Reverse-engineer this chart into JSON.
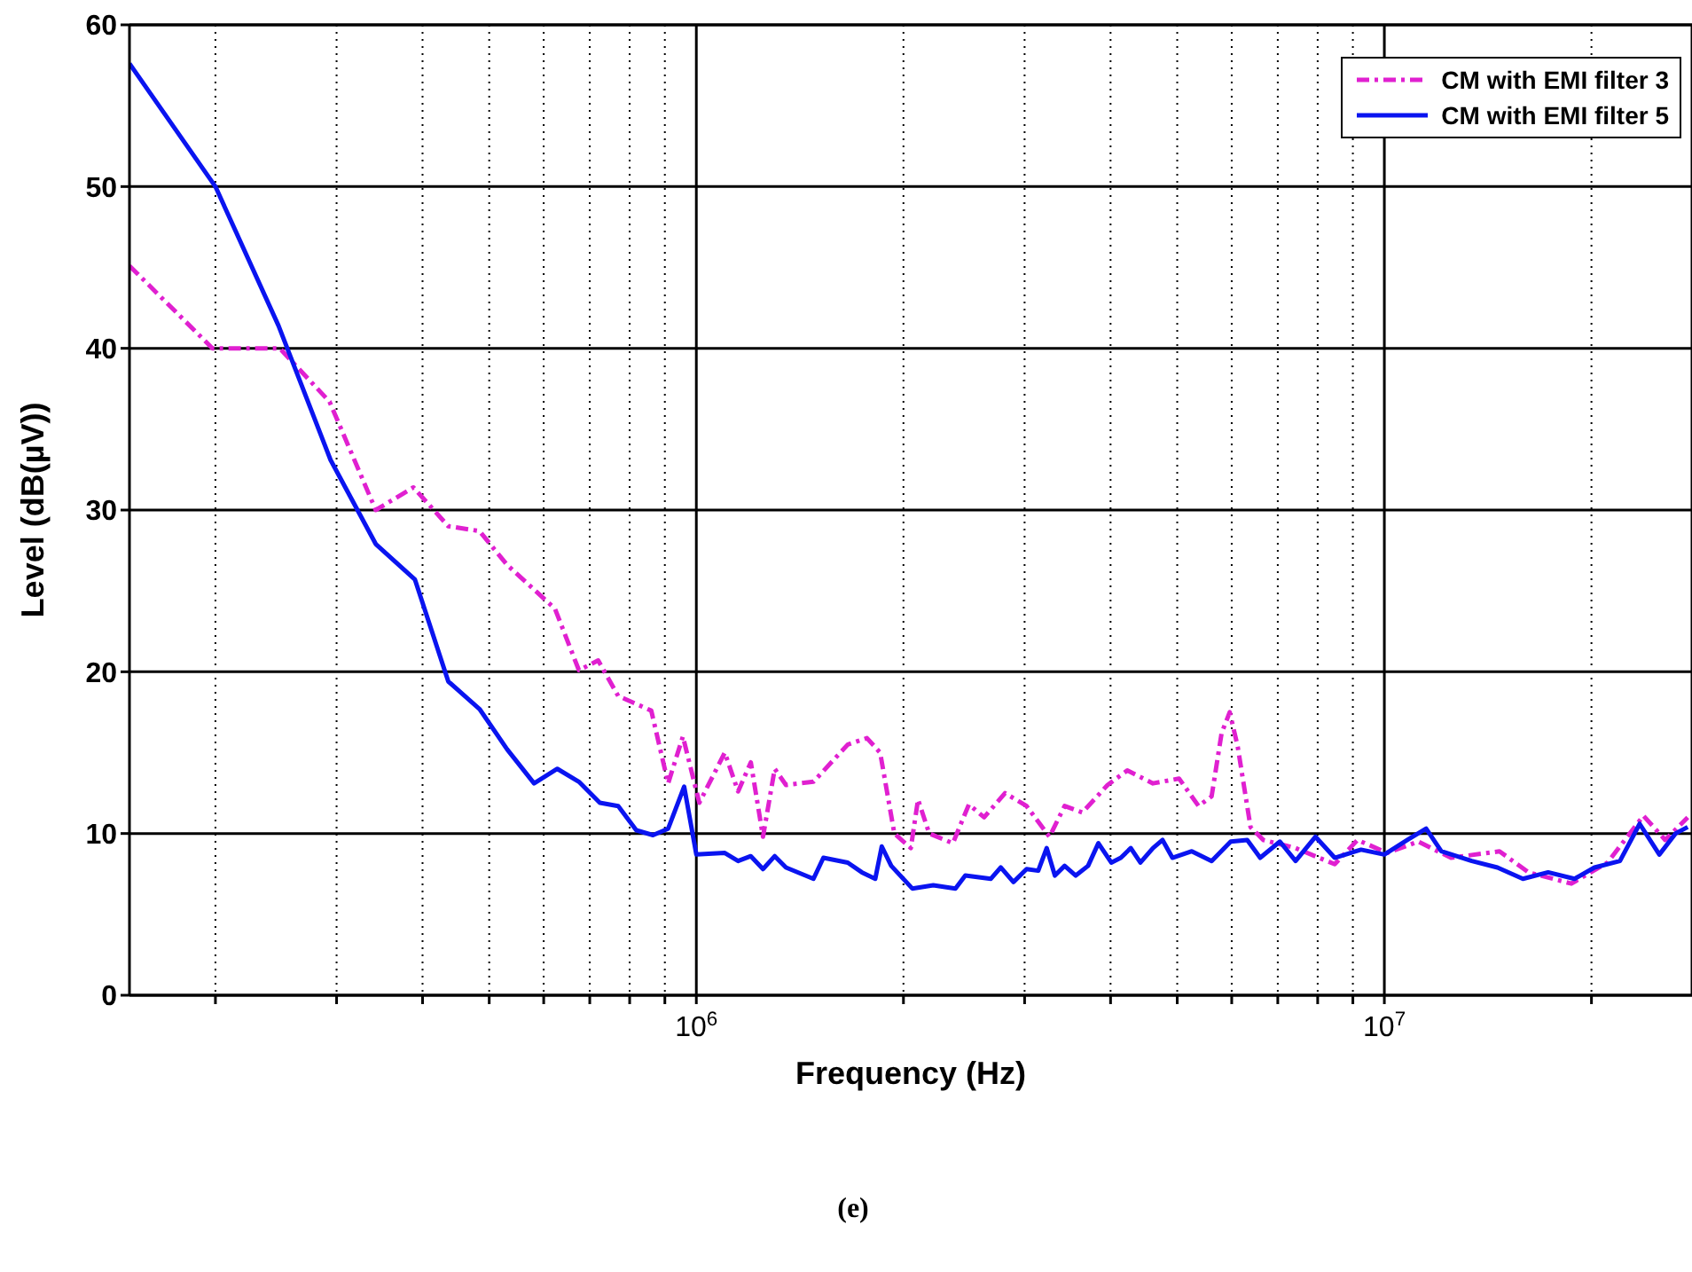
{
  "chart_data": {
    "type": "line",
    "xlabel": "Frequency (Hz)",
    "ylabel": "Level (dB(µV))",
    "log": "x",
    "xlim": [
      150000,
      28000000
    ],
    "xticks": [
      {
        "value": 200000,
        "label": null
      },
      {
        "value": 300000,
        "label": null
      },
      {
        "value": 400000,
        "label": null
      },
      {
        "value": 500000,
        "label": null
      },
      {
        "value": 600000,
        "label": null
      },
      {
        "value": 700000,
        "label": null
      },
      {
        "value": 800000,
        "label": null
      },
      {
        "value": 900000,
        "label": null
      },
      {
        "value": 1000000,
        "label": "10$^{6}$"
      },
      {
        "value": 2000000,
        "label": null
      },
      {
        "value": 3000000,
        "label": null
      },
      {
        "value": 4000000,
        "label": null
      },
      {
        "value": 5000000,
        "label": null
      },
      {
        "value": 6000000,
        "label": null
      },
      {
        "value": 7000000,
        "label": null
      },
      {
        "value": 8000000,
        "label": null
      },
      {
        "value": 9000000,
        "label": null
      },
      {
        "value": 10000000,
        "label": "10$^{7}$"
      },
      {
        "value": 20000000,
        "label": null
      }
    ],
    "ylim": [
      0,
      60
    ],
    "yticks": [
      0,
      10,
      20,
      30,
      40,
      50,
      60
    ],
    "grid": true,
    "legend": "top right",
    "marker": "none",
    "annotations": [
      "(e)"
    ],
    "series": [
      {
        "name": "CM with EMI filter 3",
        "color": "#e020d0",
        "line_style": "dashed",
        "x": [
          150000,
          198000,
          248000,
          293000,
          342000,
          388000,
          436000,
          484000,
          531000,
          623000,
          675000,
          720000,
          770000,
          860000,
          910000,
          956000,
          1010000,
          1100000,
          1150000,
          1200000,
          1250000,
          1300000,
          1350000,
          1480000,
          1660000,
          1770000,
          1850000,
          1940000,
          2050000,
          2100000,
          2180000,
          2360000,
          2490000,
          2620000,
          2810000,
          3020000,
          3260000,
          3430000,
          3640000,
          3960000,
          4230000,
          4610000,
          5030000,
          5370000,
          5610000,
          5800000,
          5960000,
          6120000,
          6390000,
          6670000,
          7430000,
          8470000,
          9140000,
          10100000,
          11200000,
          12500000,
          14700000,
          16200000,
          18700000,
          21100000,
          23800000,
          25600000,
          27600000
        ],
        "values": [
          45.1,
          40.0,
          40.0,
          36.7,
          30.0,
          31.4,
          29.0,
          28.7,
          26.6,
          23.9,
          20.1,
          20.7,
          18.5,
          17.6,
          13.1,
          16.0,
          11.9,
          15.0,
          12.6,
          14.4,
          9.8,
          14.0,
          13.0,
          13.2,
          15.5,
          15.9,
          15.0,
          10.0,
          9.1,
          12.1,
          10.0,
          9.4,
          11.8,
          11.0,
          12.5,
          11.7,
          9.8,
          11.7,
          11.3,
          13.0,
          13.9,
          13.1,
          13.4,
          11.7,
          12.3,
          16.2,
          17.5,
          15.4,
          10.4,
          9.6,
          9.1,
          8.1,
          9.6,
          8.8,
          9.5,
          8.5,
          8.9,
          7.6,
          6.9,
          8.2,
          11.1,
          9.6,
          11.0
        ]
      },
      {
        "name": "CM with EMI filter 5",
        "color": "#0a14f0",
        "line_style": "solid",
        "x": [
          150000,
          200000,
          247000,
          294000,
          342000,
          390000,
          436000,
          484000,
          531000,
          581000,
          628000,
          675000,
          724000,
          770000,
          818000,
          865000,
          910000,
          960000,
          1000000,
          1100000,
          1150000,
          1200000,
          1250000,
          1300000,
          1350000,
          1480000,
          1530000,
          1660000,
          1740000,
          1820000,
          1860000,
          1920000,
          2060000,
          2210000,
          2380000,
          2460000,
          2680000,
          2770000,
          2890000,
          3020000,
          3140000,
          3230000,
          3320000,
          3430000,
          3560000,
          3710000,
          3840000,
          4010000,
          4140000,
          4280000,
          4420000,
          4610000,
          4760000,
          4920000,
          5250000,
          5610000,
          5980000,
          6320000,
          6600000,
          7050000,
          7430000,
          7940000,
          8470000,
          9250000,
          10000000,
          10800000,
          11500000,
          12100000,
          13400000,
          14600000,
          15900000,
          17300000,
          18900000,
          20200000,
          22000000,
          23500000,
          25100000,
          26500000,
          27600000
        ],
        "values": [
          57.6,
          50.0,
          41.4,
          33.1,
          27.9,
          25.7,
          19.4,
          17.7,
          15.2,
          13.1,
          14.0,
          13.2,
          11.9,
          11.7,
          10.2,
          9.9,
          10.3,
          12.9,
          8.7,
          8.8,
          8.3,
          8.6,
          7.8,
          8.6,
          7.9,
          7.2,
          8.5,
          8.2,
          7.6,
          7.2,
          9.2,
          8.0,
          6.6,
          6.8,
          6.6,
          7.4,
          7.2,
          7.9,
          7.0,
          7.8,
          7.7,
          9.1,
          7.4,
          8.0,
          7.4,
          8.0,
          9.4,
          8.2,
          8.5,
          9.1,
          8.2,
          9.1,
          9.6,
          8.5,
          8.9,
          8.3,
          9.5,
          9.6,
          8.5,
          9.5,
          8.3,
          9.8,
          8.5,
          9.0,
          8.7,
          9.6,
          10.3,
          8.9,
          8.3,
          7.9,
          7.2,
          7.6,
          7.2,
          7.9,
          8.3,
          10.6,
          8.7,
          10.0,
          10.4
        ]
      }
    ]
  }
}
